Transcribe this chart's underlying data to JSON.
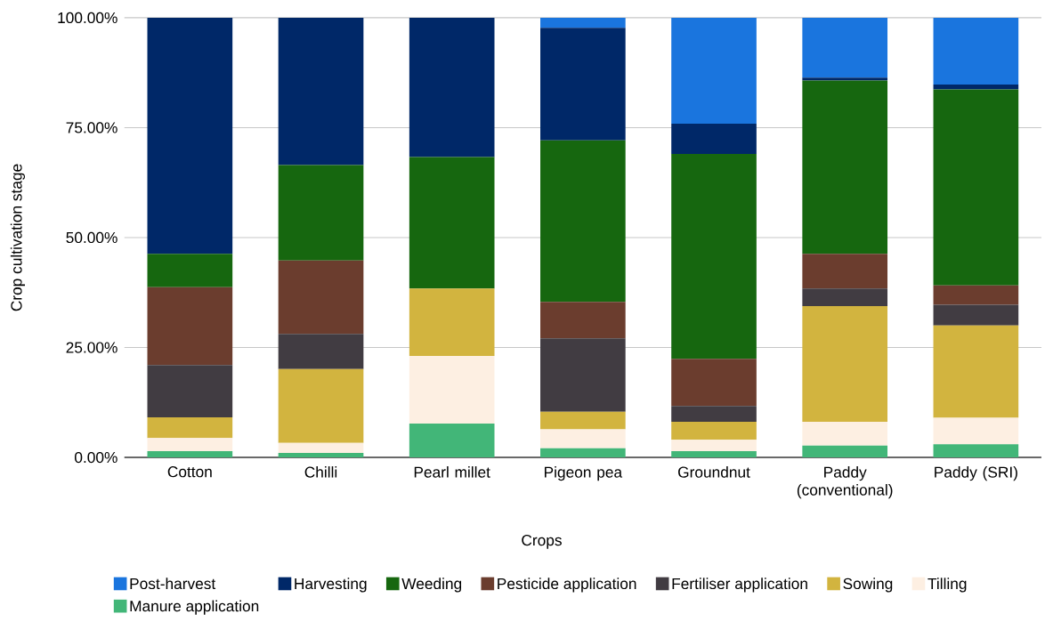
{
  "chart_data": {
    "type": "bar",
    "stacked": true,
    "xlabel": "Crops",
    "ylabel": "Crop cultivation stage",
    "categories": [
      "Cotton",
      "Chilli",
      "Pearl millet",
      "Pigeon pea",
      "Groundnut",
      "Paddy (conventional)",
      "Paddy (SRI)"
    ],
    "series": [
      {
        "name": "Manure application",
        "color": "#42b678",
        "values": [
          1.4,
          1.0,
          7.7,
          2.1,
          1.4,
          2.7,
          3.0
        ]
      },
      {
        "name": "Tilling",
        "color": "#fdefe2",
        "values": [
          3.0,
          2.3,
          15.4,
          4.3,
          2.6,
          5.4,
          6.0
        ]
      },
      {
        "name": "Sowing",
        "color": "#d2b43f",
        "values": [
          4.7,
          16.8,
          15.3,
          4.0,
          4.1,
          26.3,
          21.0
        ]
      },
      {
        "name": "Fertiliser application",
        "color": "#413c42",
        "values": [
          11.9,
          8.0,
          0,
          16.7,
          3.6,
          4.0,
          4.7
        ]
      },
      {
        "name": "Pesticide application",
        "color": "#6b3d2e",
        "values": [
          17.7,
          16.7,
          0,
          8.3,
          10.7,
          7.9,
          4.4
        ]
      },
      {
        "name": "Weeding",
        "color": "#16670f",
        "values": [
          7.6,
          21.7,
          29.9,
          36.7,
          46.6,
          39.4,
          44.6
        ]
      },
      {
        "name": "Harvesting",
        "color": "#002868",
        "values": [
          53.7,
          33.5,
          31.7,
          25.6,
          6.9,
          0.7,
          1.1
        ]
      },
      {
        "name": "Post-harvest",
        "color": "#1a75de",
        "values": [
          0,
          0,
          0,
          2.3,
          24.1,
          13.6,
          15.2
        ]
      }
    ],
    "ylim": [
      0,
      100
    ],
    "yticks": [
      {
        "value": 0,
        "label": "0.00%"
      },
      {
        "value": 25,
        "label": "25.00%"
      },
      {
        "value": 50,
        "label": "50.00%"
      },
      {
        "value": 75,
        "label": "75.00%"
      },
      {
        "value": 100,
        "label": "100.00%"
      }
    ],
    "grid": "y",
    "legend": "bottom"
  }
}
